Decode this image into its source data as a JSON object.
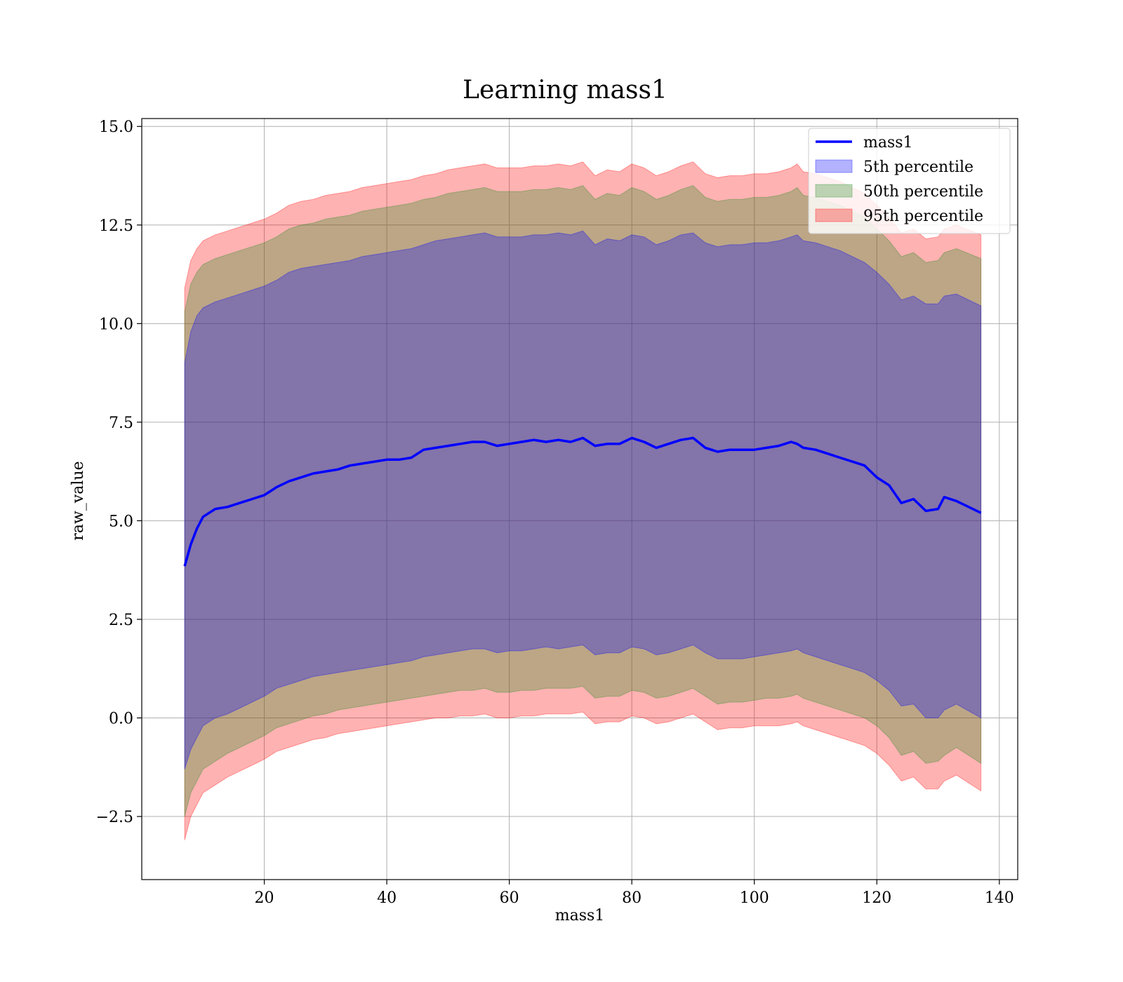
{
  "chart_data": {
    "type": "area",
    "title": "Learning mass1",
    "xlabel": "mass1",
    "ylabel": "raw_value",
    "xlim": [
      0,
      143
    ],
    "ylim": [
      -4.1,
      15.2
    ],
    "xticks": [
      20,
      40,
      60,
      80,
      100,
      120,
      140
    ],
    "yticks": [
      -2.5,
      0.0,
      2.5,
      5.0,
      7.5,
      10.0,
      12.5,
      15.0
    ],
    "ytick_labels": [
      "−2.5",
      "0.0",
      "2.5",
      "5.0",
      "7.5",
      "10.0",
      "12.5",
      "15.0"
    ],
    "grid": true,
    "legend_position": "upper right",
    "legend": [
      "mass1",
      "5th percentile",
      "50th percentile",
      "95th percentile"
    ],
    "mean_line": {
      "name": "mass1",
      "color": "#0000ff",
      "x": [
        7,
        8,
        9,
        10,
        11,
        12,
        14,
        16,
        18,
        20,
        22,
        24,
        26,
        28,
        30,
        32,
        34,
        36,
        38,
        40,
        42,
        44,
        46,
        48,
        50,
        52,
        54,
        56,
        58,
        60,
        62,
        64,
        66,
        68,
        70,
        72,
        74,
        76,
        78,
        80,
        82,
        84,
        86,
        88,
        90,
        92,
        94,
        96,
        98,
        100,
        102,
        104,
        106,
        107,
        108,
        110,
        112,
        114,
        116,
        118,
        120,
        122,
        124,
        126,
        128,
        130,
        131,
        133,
        137
      ],
      "y": [
        3.85,
        4.4,
        4.8,
        5.1,
        5.2,
        5.3,
        5.35,
        5.45,
        5.55,
        5.65,
        5.85,
        6.0,
        6.1,
        6.2,
        6.25,
        6.3,
        6.4,
        6.45,
        6.5,
        6.55,
        6.55,
        6.6,
        6.8,
        6.85,
        6.9,
        6.95,
        7.0,
        7.0,
        6.9,
        6.95,
        7.0,
        7.05,
        7.0,
        7.05,
        7.0,
        7.1,
        6.9,
        6.95,
        6.95,
        7.1,
        7.0,
        6.85,
        6.95,
        7.05,
        7.1,
        6.85,
        6.75,
        6.8,
        6.8,
        6.8,
        6.85,
        6.9,
        7.0,
        6.95,
        6.85,
        6.8,
        6.7,
        6.6,
        6.5,
        6.4,
        6.1,
        5.9,
        5.45,
        5.55,
        5.25,
        5.3,
        5.6,
        5.5,
        5.2
      ]
    },
    "bands": [
      {
        "name": "5th percentile",
        "color": "#0000ff",
        "x": [
          7,
          8,
          9,
          10,
          12,
          14,
          16,
          18,
          20,
          22,
          24,
          26,
          28,
          30,
          32,
          34,
          36,
          38,
          40,
          42,
          44,
          46,
          48,
          50,
          52,
          54,
          56,
          58,
          60,
          62,
          64,
          66,
          68,
          70,
          72,
          74,
          76,
          78,
          80,
          82,
          84,
          86,
          88,
          90,
          92,
          94,
          96,
          98,
          100,
          102,
          104,
          106,
          107,
          108,
          110,
          112,
          114,
          116,
          118,
          120,
          122,
          124,
          126,
          128,
          130,
          131,
          133,
          137
        ],
        "lower": [
          -1.3,
          -0.8,
          -0.5,
          -0.2,
          0.0,
          0.1,
          0.25,
          0.4,
          0.55,
          0.75,
          0.85,
          0.95,
          1.05,
          1.1,
          1.15,
          1.2,
          1.25,
          1.3,
          1.35,
          1.4,
          1.45,
          1.55,
          1.6,
          1.65,
          1.7,
          1.75,
          1.75,
          1.65,
          1.7,
          1.7,
          1.75,
          1.8,
          1.75,
          1.8,
          1.85,
          1.6,
          1.65,
          1.65,
          1.8,
          1.75,
          1.6,
          1.65,
          1.75,
          1.85,
          1.65,
          1.5,
          1.5,
          1.5,
          1.55,
          1.6,
          1.65,
          1.7,
          1.75,
          1.65,
          1.55,
          1.45,
          1.35,
          1.25,
          1.15,
          0.95,
          0.7,
          0.3,
          0.35,
          0.0,
          0.0,
          0.2,
          0.35,
          0.0
        ],
        "upper": [
          9.0,
          9.8,
          10.2,
          10.4,
          10.55,
          10.65,
          10.75,
          10.85,
          10.95,
          11.1,
          11.3,
          11.4,
          11.45,
          11.5,
          11.55,
          11.6,
          11.7,
          11.75,
          11.8,
          11.85,
          11.9,
          12.0,
          12.1,
          12.15,
          12.2,
          12.25,
          12.3,
          12.2,
          12.2,
          12.2,
          12.25,
          12.25,
          12.3,
          12.25,
          12.35,
          12.0,
          12.15,
          12.1,
          12.25,
          12.2,
          12.0,
          12.1,
          12.25,
          12.3,
          12.05,
          11.95,
          12.0,
          12.0,
          12.05,
          12.05,
          12.1,
          12.2,
          12.25,
          12.1,
          12.05,
          11.95,
          11.85,
          11.7,
          11.55,
          11.3,
          11.0,
          10.6,
          10.7,
          10.5,
          10.5,
          10.7,
          10.75,
          10.45
        ]
      },
      {
        "name": "50th percentile",
        "color": "#228b22",
        "x": [
          7,
          8,
          9,
          10,
          12,
          14,
          16,
          18,
          20,
          22,
          24,
          26,
          28,
          30,
          32,
          34,
          36,
          38,
          40,
          42,
          44,
          46,
          48,
          50,
          52,
          54,
          56,
          58,
          60,
          62,
          64,
          66,
          68,
          70,
          72,
          74,
          76,
          78,
          80,
          82,
          84,
          86,
          88,
          90,
          92,
          94,
          96,
          98,
          100,
          102,
          104,
          106,
          107,
          108,
          110,
          112,
          114,
          116,
          118,
          120,
          122,
          124,
          126,
          128,
          130,
          131,
          133,
          137
        ],
        "lower": [
          -2.5,
          -1.9,
          -1.6,
          -1.3,
          -1.1,
          -0.9,
          -0.75,
          -0.6,
          -0.45,
          -0.25,
          -0.15,
          -0.05,
          0.05,
          0.1,
          0.2,
          0.25,
          0.3,
          0.35,
          0.4,
          0.45,
          0.5,
          0.55,
          0.6,
          0.65,
          0.7,
          0.7,
          0.75,
          0.65,
          0.65,
          0.7,
          0.7,
          0.75,
          0.75,
          0.75,
          0.8,
          0.5,
          0.55,
          0.55,
          0.7,
          0.65,
          0.5,
          0.55,
          0.65,
          0.75,
          0.55,
          0.35,
          0.4,
          0.4,
          0.45,
          0.5,
          0.5,
          0.55,
          0.6,
          0.5,
          0.4,
          0.3,
          0.2,
          0.1,
          0.0,
          -0.2,
          -0.5,
          -0.95,
          -0.85,
          -1.15,
          -1.1,
          -0.95,
          -0.75,
          -1.15
        ],
        "upper": [
          10.3,
          11.0,
          11.3,
          11.5,
          11.65,
          11.75,
          11.85,
          11.95,
          12.05,
          12.2,
          12.4,
          12.5,
          12.55,
          12.65,
          12.7,
          12.75,
          12.85,
          12.9,
          12.95,
          13.0,
          13.05,
          13.15,
          13.2,
          13.3,
          13.35,
          13.4,
          13.45,
          13.35,
          13.35,
          13.35,
          13.4,
          13.4,
          13.45,
          13.4,
          13.5,
          13.15,
          13.3,
          13.25,
          13.45,
          13.35,
          13.15,
          13.25,
          13.4,
          13.5,
          13.2,
          13.1,
          13.15,
          13.15,
          13.2,
          13.2,
          13.25,
          13.35,
          13.45,
          13.25,
          13.2,
          13.1,
          13.0,
          12.85,
          12.7,
          12.4,
          12.1,
          11.7,
          11.8,
          11.55,
          11.6,
          11.8,
          11.9,
          11.65
        ]
      },
      {
        "name": "95th percentile",
        "color": "#ff0000",
        "x": [
          7,
          8,
          9,
          10,
          12,
          14,
          16,
          18,
          20,
          22,
          24,
          26,
          28,
          30,
          32,
          34,
          36,
          38,
          40,
          42,
          44,
          46,
          48,
          50,
          52,
          54,
          56,
          58,
          60,
          62,
          64,
          66,
          68,
          70,
          72,
          74,
          76,
          78,
          80,
          82,
          84,
          86,
          88,
          90,
          92,
          94,
          96,
          98,
          100,
          102,
          104,
          106,
          107,
          108,
          110,
          112,
          114,
          116,
          118,
          120,
          122,
          124,
          126,
          128,
          130,
          131,
          133,
          137
        ],
        "lower": [
          -3.1,
          -2.5,
          -2.2,
          -1.9,
          -1.7,
          -1.5,
          -1.35,
          -1.2,
          -1.05,
          -0.85,
          -0.75,
          -0.65,
          -0.55,
          -0.5,
          -0.4,
          -0.35,
          -0.3,
          -0.25,
          -0.2,
          -0.15,
          -0.1,
          -0.05,
          0.0,
          0.0,
          0.05,
          0.05,
          0.1,
          0.0,
          0.0,
          0.05,
          0.05,
          0.1,
          0.1,
          0.1,
          0.15,
          -0.15,
          -0.1,
          -0.1,
          0.05,
          0.0,
          -0.15,
          -0.1,
          0.0,
          0.1,
          -0.1,
          -0.3,
          -0.25,
          -0.25,
          -0.2,
          -0.2,
          -0.2,
          -0.15,
          -0.1,
          -0.2,
          -0.3,
          -0.4,
          -0.5,
          -0.6,
          -0.7,
          -0.9,
          -1.2,
          -1.6,
          -1.5,
          -1.8,
          -1.8,
          -1.6,
          -1.45,
          -1.85
        ],
        "upper": [
          10.9,
          11.6,
          11.9,
          12.1,
          12.25,
          12.35,
          12.45,
          12.55,
          12.65,
          12.8,
          13.0,
          13.1,
          13.15,
          13.25,
          13.3,
          13.35,
          13.45,
          13.5,
          13.55,
          13.6,
          13.65,
          13.75,
          13.8,
          13.9,
          13.95,
          14.0,
          14.05,
          13.95,
          13.95,
          13.95,
          14.0,
          14.0,
          14.05,
          14.0,
          14.1,
          13.75,
          13.9,
          13.85,
          14.05,
          13.95,
          13.75,
          13.85,
          14.0,
          14.1,
          13.8,
          13.7,
          13.75,
          13.75,
          13.8,
          13.8,
          13.85,
          13.95,
          14.05,
          13.85,
          13.8,
          13.7,
          13.6,
          13.45,
          13.3,
          13.0,
          12.7,
          12.3,
          12.4,
          12.15,
          12.2,
          12.4,
          12.5,
          12.25
        ]
      }
    ]
  }
}
